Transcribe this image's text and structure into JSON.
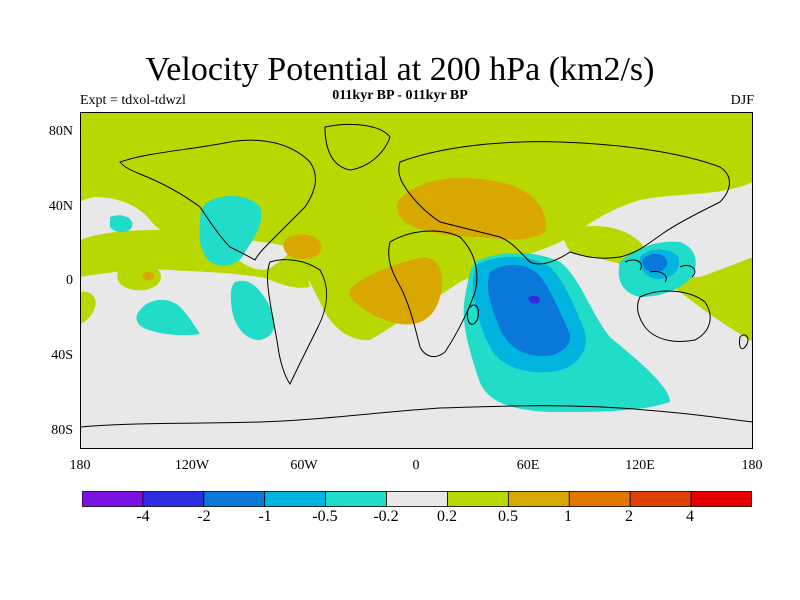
{
  "header": {
    "title": "Velocity Potential at 200 hPa (km2/s)",
    "subtitle": "011kyr BP - 011kyr BP",
    "expt": "Expt = tdxol-tdwzl",
    "season": "DJF"
  },
  "axes": {
    "lat_labels": [
      "80N",
      "40N",
      "0",
      "40S",
      "80S"
    ],
    "lon_labels": [
      "180",
      "120W",
      "60W",
      "0",
      "60E",
      "120E",
      "180"
    ]
  },
  "colorbar": {
    "colors": [
      "#7a12e0",
      "#2d2ee0",
      "#0a78d8",
      "#00b4e0",
      "#20dcc8",
      "#e8e8e8",
      "#b8d800",
      "#d8a800",
      "#e07800",
      "#e04000",
      "#e80000"
    ],
    "labels": [
      "-4",
      "-2",
      "-1",
      "-0.5",
      "-0.2",
      "0.2",
      "0.5",
      "1",
      "2",
      "4"
    ]
  },
  "colors": {
    "land_outline": "#000000",
    "neutral": "#e8e8e8",
    "positive_weak": "#b8d800",
    "positive_mid": "#d8a800",
    "negative_weak": "#20dcc8",
    "negative_mid": "#00b4e0",
    "negative_strong": "#0a78d8",
    "negative_max": "#2d2ee0"
  }
}
